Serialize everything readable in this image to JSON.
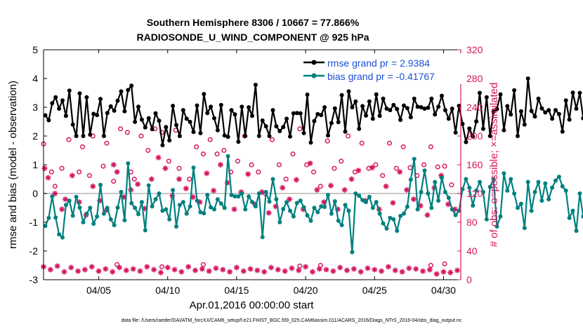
{
  "chart_data": {
    "type": "line",
    "title": "Southern Hemisphere 8306 / 10667 = 77.866%",
    "subtitle": "RADIOSONDE_U_WIND_COMPONENT @ 925 hPa",
    "xlabel": "Apr.01,2016 00:00:00 start",
    "ylabel_left": "rmse and bias (model - observation)",
    "ylabel_right": "# of obs: o=possible; ×=assimilated",
    "footer": "data file: /Users/raeder/DAI/ATM_forcXX/CAM6_setup/f.e21.FHIST_BGC.f09_025.CAM6assim.011/ACARS_2016/Diags_NTrS_2016-04/obs_diag_output.nc",
    "xlim": [
      1.0,
      31.25
    ],
    "ylim_left": [
      -3,
      5
    ],
    "ylim_right": [
      0,
      320
    ],
    "x_ticks": [
      5,
      10,
      15,
      20,
      25,
      30
    ],
    "x_tick_labels": [
      "04/05",
      "04/10",
      "04/15",
      "04/20",
      "04/25",
      "04/30"
    ],
    "y_ticks_left": [
      -3,
      -2,
      -1,
      0,
      1,
      2,
      3,
      4,
      5
    ],
    "y_ticks_left_labels": [
      "-3",
      "-2",
      "-1",
      "0",
      "1",
      "2",
      "3",
      "4",
      "5"
    ],
    "y_ticks_right": [
      0,
      40,
      80,
      120,
      160,
      200,
      240,
      280,
      320
    ],
    "y_ticks_right_labels": [
      "0",
      "40",
      "80",
      "120",
      "160",
      "200",
      "240",
      "280",
      "320"
    ],
    "legend": [
      {
        "label": "rmse grand pr = 2.9384",
        "color": "#000000"
      },
      {
        "label": "bias grand pr = -0.41767",
        "color": "#008080"
      }
    ],
    "colors": {
      "rmse": "#000000",
      "bias": "#008080",
      "obs": "#d6175f",
      "zero_line": "#c8c8c8",
      "legend_text": "#1a4fd6"
    },
    "x_start": 1.125,
    "x_step": 0.25,
    "series": [
      {
        "name": "rmse",
        "axis": "left",
        "values": [
          2.72,
          2.55,
          3.14,
          3.35,
          2.95,
          3.24,
          2.7,
          3.58,
          2.4,
          2.0,
          3.48,
          2.0,
          3.35,
          2.05,
          2.77,
          2.73,
          3.29,
          2.0,
          2.8,
          3.03,
          2.88,
          3.23,
          3.55,
          2.86,
          3.6,
          3.75,
          2.49,
          3.02,
          2.57,
          2.3,
          2.62,
          2.24,
          2.79,
          2.53,
          1.68,
          2.31,
          1.85,
          3.05,
          2.38,
          2.0,
          2.9,
          2.6,
          2.49,
          2.14,
          3.06,
          2.1,
          3.46,
          2.8,
          3.02,
          2.62,
          2.2,
          3.08,
          2.02,
          1.97,
          2.9,
          2.75,
          1.8,
          3.02,
          2.0,
          3.0,
          2.7,
          3.78,
          2.0,
          2.54,
          2.34,
          2.0,
          2.9,
          2.34,
          2.17,
          2.31,
          2.6,
          1.98,
          2.79,
          2.8,
          2.79,
          2.1,
          3.44,
          1.77,
          2.52,
          2.76,
          2.73,
          3.0,
          2.02,
          2.45,
          2.96,
          2.48,
          3.42,
          2.15,
          3.55,
          3.0,
          3.2,
          2.25,
          3.04,
          2.71,
          3.2,
          2.6,
          3.45,
          2.7,
          3.3,
          2.95,
          2.9,
          3.08,
          2.94,
          2.56,
          3.06,
          2.97,
          2.65,
          3.3,
          3.02,
          3.0,
          2.95,
          2.98,
          3.3,
          2.75,
          3.02,
          3.4,
          2.9,
          2.6,
          2.95,
          2.12,
          3.05,
          2.42,
          1.79,
          2.26,
          1.98,
          2.51,
          3.5,
          2.25,
          3.35,
          2.0,
          2.85,
          2.94,
          3.45,
          2.2,
          3.04,
          2.75,
          3.59,
          2.0,
          2.86,
          2.4,
          4.0,
          2.87,
          2.68,
          3.3,
          2.96,
          2.82,
          2.9,
          2.6,
          2.9,
          2.76,
          2.15,
          3.24,
          2.57,
          3.51,
          2.95,
          3.5,
          2.62,
          3.07,
          2.07,
          3.24,
          2.2
        ]
      },
      {
        "name": "bias",
        "axis": "left",
        "values": [
          -1.13,
          -0.85,
          -0.1,
          -0.84,
          -1.42,
          -1.53,
          -0.4,
          -0.25,
          -0.77,
          -0.12,
          -0.49,
          -1.0,
          -0.7,
          -0.5,
          -1.05,
          -0.8,
          0.3,
          -0.7,
          -0.5,
          -0.9,
          -1.1,
          -0.49,
          0.05,
          -0.93,
          1.05,
          -0.34,
          -0.5,
          -0.72,
          -0.3,
          -1.28,
          0.28,
          -0.45,
          -0.2,
          0.0,
          -0.6,
          -0.55,
          -0.9,
          0.12,
          -1.15,
          -0.4,
          -0.3,
          -0.7,
          -0.45,
          0.9,
          -0.25,
          -0.65,
          -0.69,
          -0.05,
          -0.48,
          -0.55,
          -0.2,
          -0.35,
          -0.5,
          1.3,
          -0.05,
          -0.1,
          -0.1,
          0.0,
          -0.55,
          -0.1,
          -0.3,
          -0.45,
          0.0,
          -1.52,
          0.05,
          -0.28,
          0.5,
          -0.2,
          -1.0,
          -0.54,
          -0.3,
          -0.6,
          -0.8,
          -0.33,
          -0.25,
          -0.48,
          -0.76,
          -0.95,
          -0.5,
          -0.65,
          -0.45,
          -0.47,
          -0.05,
          -0.7,
          -0.27,
          -0.95,
          -1.1,
          -0.4,
          -0.6,
          -2.04,
          0.0,
          -0.08,
          -0.23,
          -0.3,
          -0.12,
          -0.5,
          -0.3,
          -0.7,
          -1.04,
          -1.22,
          -0.85,
          -0.9,
          -1.3,
          -0.78,
          -0.7,
          -0.46,
          0.48,
          1.2,
          -0.55,
          0.05,
          0.8,
          0.0,
          -0.5,
          0.4,
          -0.25,
          0.55,
          0.05,
          -0.15,
          -0.55,
          -0.75,
          -0.6,
          0.15,
          0.5,
          0.2,
          -0.42,
          0.1,
          0.4,
          0.05,
          -0.9,
          0.23,
          0.5,
          -1.15,
          -0.8,
          0.7,
          0.1,
          0.5,
          0.0,
          -0.5,
          -0.36,
          -1.2,
          0.4,
          -0.6,
          0.05,
          0.4,
          -0.25,
          0.35,
          -0.2,
          0.2,
          0.45,
          0.58,
          0.25,
          0.1,
          -0.85,
          -0.6,
          -1.3,
          0.0,
          -0.8,
          -0.67,
          -0.82,
          -1.48,
          -0.58,
          -0.56
        ]
      },
      {
        "name": "obs possible",
        "axis": "right",
        "marker": "circle",
        "x": [
          1.0,
          1.58,
          1.83,
          2.33,
          2.83,
          3.58,
          3.83,
          4.33,
          4.58,
          5.33,
          5.58,
          6.08,
          6.58,
          7.08,
          7.33,
          7.58,
          8.08,
          8.58,
          9.08,
          9.58,
          10.08,
          10.58,
          10.83,
          11.58,
          12.08,
          12.58,
          13.08,
          13.58,
          14.08,
          14.58,
          15.08,
          15.58,
          16.08,
          16.58,
          17.08,
          17.58,
          18.08,
          18.58,
          19.08,
          19.58,
          20.08,
          20.58,
          21.08,
          21.58,
          22.08,
          22.58,
          23.08,
          23.58,
          24.08,
          24.58,
          25.08,
          25.58,
          26.08,
          26.58,
          27.08,
          27.58,
          28.08,
          28.58,
          29.08,
          29.58,
          30.08,
          30.58
        ],
        "values": [
          189,
          150,
          130,
          155,
          195,
          150,
          185,
          145,
          200,
          158,
          190,
          137,
          210,
          205,
          150,
          140,
          200,
          180,
          210,
          205,
          165,
          208,
          155,
          140,
          185,
          175,
          195,
          175,
          180,
          150,
          165,
          200,
          160,
          150,
          120,
          195,
          160,
          140,
          175,
          210,
          160,
          150,
          130,
          193,
          155,
          165,
          200,
          150,
          190,
          155,
          160,
          145,
          190,
          155,
          185,
          156,
          145,
          160,
          185,
          157,
          158,
          132
        ]
      },
      {
        "name": "obs assimilated",
        "axis": "right",
        "marker": "asterisk",
        "x": [
          1.08,
          1.33,
          1.83,
          2.33,
          2.58,
          3.08,
          3.58,
          4.08,
          4.58,
          5.08,
          5.58,
          6.08,
          6.33,
          6.83,
          7.33,
          7.83,
          8.33,
          8.83,
          9.33,
          9.83,
          10.33,
          10.83,
          11.33,
          11.83,
          12.33,
          12.83,
          13.33,
          13.83,
          14.33,
          14.83,
          15.33,
          15.83,
          16.33,
          16.83,
          17.33,
          17.83,
          18.33,
          18.83,
          19.33,
          19.83,
          20.33,
          20.83,
          21.33,
          21.83,
          22.33,
          22.83,
          23.33,
          23.83,
          24.33,
          24.83,
          25.33,
          25.83,
          26.33,
          26.83,
          27.33,
          27.83,
          28.33,
          28.83,
          29.33,
          29.83,
          30.33,
          30.83
        ],
        "values": [
          155,
          142,
          120,
          98,
          112,
          145,
          108,
          90,
          130,
          110,
          97,
          160,
          150,
          115,
          125,
          133,
          99,
          140,
          170,
          155,
          117,
          140,
          127,
          115,
          108,
          148,
          124,
          160,
          135,
          98,
          122,
          147,
          105,
          122,
          93,
          102,
          128,
          112,
          139,
          98,
          162,
          125,
          108,
          131,
          98,
          125,
          140,
          152,
          110,
          156,
          98,
          130,
          107,
          150,
          125,
          112,
          103,
          90,
          128,
          145,
          105,
          98
        ]
      },
      {
        "name": "obs possible low",
        "axis": "right",
        "marker": "circle",
        "x": [
          6.33,
          9.58,
          12.58,
          19.58,
          21.08,
          29.08,
          30.08
        ],
        "values": [
          21,
          18,
          21,
          19,
          20,
          20,
          22
        ]
      },
      {
        "name": "obs assimilated low",
        "axis": "right",
        "marker": "asterisk",
        "x": [
          1.0,
          1.5,
          2.0,
          2.5,
          3.0,
          3.5,
          4.0,
          4.5,
          5.0,
          5.5,
          6.0,
          6.5,
          7.0,
          7.5,
          8.0,
          8.5,
          9.0,
          9.5,
          10.0,
          10.5,
          11.0,
          11.5,
          12.0,
          12.5,
          13.0,
          13.5,
          14.0,
          14.5,
          15.0,
          15.5,
          16.0,
          16.5,
          17.0,
          17.5,
          18.0,
          18.5,
          19.0,
          19.5,
          20.0,
          20.5,
          21.0,
          21.5,
          22.0,
          22.5,
          23.0,
          23.5,
          24.0,
          24.5,
          25.0,
          25.5,
          26.0,
          26.5,
          27.0,
          27.5,
          28.0,
          28.5,
          29.0,
          29.5,
          30.0,
          30.5,
          31.0
        ],
        "values": [
          18,
          14,
          19,
          11,
          17,
          12,
          14,
          18,
          12,
          15,
          11,
          17,
          13,
          15,
          12,
          18,
          14,
          10,
          17,
          14,
          11,
          18,
          13,
          15,
          12,
          16,
          14,
          11,
          17,
          12,
          15,
          13,
          11,
          17,
          14,
          12,
          16,
          13,
          18,
          11,
          15,
          14,
          12,
          17,
          13,
          15,
          11,
          16,
          14,
          12,
          18,
          13,
          11,
          16,
          15,
          12,
          14,
          8,
          11,
          10,
          13
        ]
      }
    ]
  }
}
